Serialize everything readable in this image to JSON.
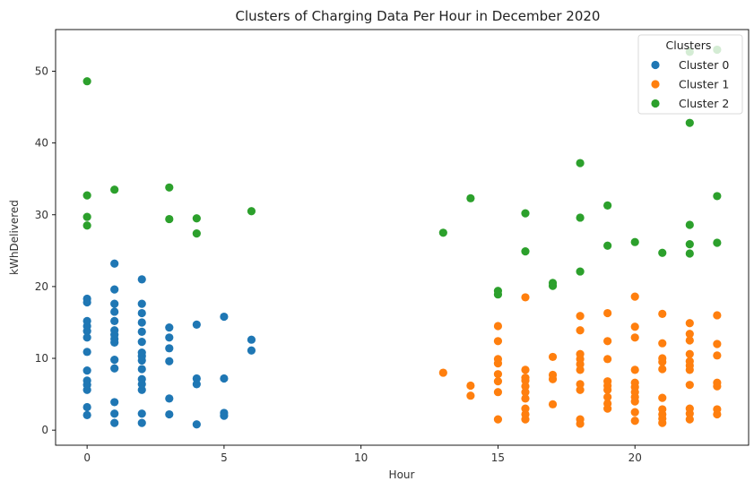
{
  "chart_data": {
    "type": "scatter",
    "title": "Clusters of Charging Data Per Hour in December 2020",
    "xlabel": "Hour",
    "ylabel": "kWhDelivered",
    "xlim": [
      -1.15,
      24.15
    ],
    "ylim": [
      -2.1,
      55.8
    ],
    "xticks": [
      0,
      5,
      10,
      15,
      20
    ],
    "yticks": [
      0,
      10,
      20,
      30,
      40,
      50
    ],
    "grid": false,
    "legend": {
      "title": "Clusters",
      "placement": "top-right"
    },
    "series": [
      {
        "name": "Cluster 0",
        "color": "#1f77b4",
        "points": [
          [
            0,
            2.1
          ],
          [
            0,
            3.2
          ],
          [
            0,
            5.6
          ],
          [
            0,
            6.3
          ],
          [
            0,
            6.9
          ],
          [
            0,
            8.3
          ],
          [
            0,
            10.9
          ],
          [
            0,
            12.9
          ],
          [
            0,
            13.8
          ],
          [
            0,
            14.5
          ],
          [
            0,
            15.2
          ],
          [
            0,
            17.8
          ],
          [
            0,
            18.3
          ],
          [
            1,
            1.0
          ],
          [
            1,
            2.3
          ],
          [
            1,
            3.9
          ],
          [
            1,
            8.6
          ],
          [
            1,
            9.8
          ],
          [
            1,
            12.2
          ],
          [
            1,
            12.7
          ],
          [
            1,
            13.3
          ],
          [
            1,
            13.9
          ],
          [
            1,
            15.2
          ],
          [
            1,
            16.5
          ],
          [
            1,
            17.6
          ],
          [
            1,
            19.6
          ],
          [
            1,
            23.2
          ],
          [
            2,
            1.0
          ],
          [
            2,
            2.3
          ],
          [
            2,
            5.6
          ],
          [
            2,
            6.4
          ],
          [
            2,
            7.1
          ],
          [
            2,
            8.5
          ],
          [
            2,
            9.7
          ],
          [
            2,
            10.3
          ],
          [
            2,
            10.8
          ],
          [
            2,
            12.3
          ],
          [
            2,
            13.7
          ],
          [
            2,
            15.0
          ],
          [
            2,
            16.3
          ],
          [
            2,
            17.6
          ],
          [
            2,
            21.0
          ],
          [
            3,
            2.2
          ],
          [
            3,
            4.4
          ],
          [
            3,
            9.6
          ],
          [
            3,
            11.4
          ],
          [
            3,
            12.9
          ],
          [
            3,
            14.3
          ],
          [
            4,
            0.8
          ],
          [
            4,
            6.4
          ],
          [
            4,
            7.2
          ],
          [
            4,
            14.7
          ],
          [
            5,
            2.0
          ],
          [
            5,
            2.4
          ],
          [
            5,
            7.2
          ],
          [
            5,
            15.8
          ],
          [
            6,
            11.1
          ],
          [
            6,
            12.6
          ]
        ]
      },
      {
        "name": "Cluster 1",
        "color": "#ff7f0e",
        "points": [
          [
            13,
            8.0
          ],
          [
            14,
            4.8
          ],
          [
            14,
            6.2
          ],
          [
            15,
            1.5
          ],
          [
            15,
            5.3
          ],
          [
            15,
            6.8
          ],
          [
            15,
            7.8
          ],
          [
            15,
            9.3
          ],
          [
            15,
            9.9
          ],
          [
            15,
            12.4
          ],
          [
            15,
            14.5
          ],
          [
            16,
            1.5
          ],
          [
            16,
            2.2
          ],
          [
            16,
            3.0
          ],
          [
            16,
            4.4
          ],
          [
            16,
            5.3
          ],
          [
            16,
            6.1
          ],
          [
            16,
            6.9
          ],
          [
            16,
            7.3
          ],
          [
            16,
            8.4
          ],
          [
            16,
            18.5
          ],
          [
            17,
            3.6
          ],
          [
            17,
            7.1
          ],
          [
            17,
            7.7
          ],
          [
            17,
            10.2
          ],
          [
            18,
            0.9
          ],
          [
            18,
            1.5
          ],
          [
            18,
            5.6
          ],
          [
            18,
            6.4
          ],
          [
            18,
            8.4
          ],
          [
            18,
            9.2
          ],
          [
            18,
            9.9
          ],
          [
            18,
            10.6
          ],
          [
            18,
            13.9
          ],
          [
            18,
            15.9
          ],
          [
            19,
            3.0
          ],
          [
            19,
            3.7
          ],
          [
            19,
            4.6
          ],
          [
            19,
            5.6
          ],
          [
            19,
            6.2
          ],
          [
            19,
            6.8
          ],
          [
            19,
            9.9
          ],
          [
            19,
            12.4
          ],
          [
            19,
            16.3
          ],
          [
            20,
            1.3
          ],
          [
            20,
            2.5
          ],
          [
            20,
            4.0
          ],
          [
            20,
            4.6
          ],
          [
            20,
            5.3
          ],
          [
            20,
            6.0
          ],
          [
            20,
            6.6
          ],
          [
            20,
            8.4
          ],
          [
            20,
            12.9
          ],
          [
            20,
            14.4
          ],
          [
            20,
            18.6
          ],
          [
            21,
            1.0
          ],
          [
            21,
            1.6
          ],
          [
            21,
            2.2
          ],
          [
            21,
            2.9
          ],
          [
            21,
            4.5
          ],
          [
            21,
            8.5
          ],
          [
            21,
            9.5
          ],
          [
            21,
            10.0
          ],
          [
            21,
            12.1
          ],
          [
            21,
            16.2
          ],
          [
            22,
            1.5
          ],
          [
            22,
            2.3
          ],
          [
            22,
            3.0
          ],
          [
            22,
            6.3
          ],
          [
            22,
            8.4
          ],
          [
            22,
            9.0
          ],
          [
            22,
            9.6
          ],
          [
            22,
            10.6
          ],
          [
            22,
            12.5
          ],
          [
            22,
            13.4
          ],
          [
            22,
            14.9
          ],
          [
            23,
            2.2
          ],
          [
            23,
            2.9
          ],
          [
            23,
            6.1
          ],
          [
            23,
            6.6
          ],
          [
            23,
            10.4
          ],
          [
            23,
            12.0
          ],
          [
            23,
            16.0
          ]
        ]
      },
      {
        "name": "Cluster 2",
        "color": "#2ca02c",
        "points": [
          [
            0,
            28.5
          ],
          [
            0,
            29.7
          ],
          [
            0,
            32.7
          ],
          [
            0,
            48.6
          ],
          [
            1,
            33.5
          ],
          [
            3,
            29.4
          ],
          [
            3,
            33.8
          ],
          [
            4,
            27.4
          ],
          [
            4,
            29.5
          ],
          [
            6,
            30.5
          ],
          [
            13,
            27.5
          ],
          [
            14,
            32.3
          ],
          [
            15,
            18.9
          ],
          [
            15,
            19.4
          ],
          [
            16,
            24.9
          ],
          [
            16,
            30.2
          ],
          [
            17,
            20.1
          ],
          [
            17,
            20.5
          ],
          [
            18,
            22.1
          ],
          [
            18,
            29.6
          ],
          [
            18,
            37.2
          ],
          [
            19,
            25.7
          ],
          [
            19,
            31.3
          ],
          [
            20,
            26.2
          ],
          [
            21,
            24.7
          ],
          [
            22,
            24.6
          ],
          [
            22,
            25.9
          ],
          [
            22,
            28.6
          ],
          [
            22,
            42.8
          ],
          [
            22,
            52.7
          ],
          [
            23,
            26.1
          ],
          [
            23,
            32.6
          ],
          [
            23,
            53.0
          ]
        ]
      }
    ]
  }
}
